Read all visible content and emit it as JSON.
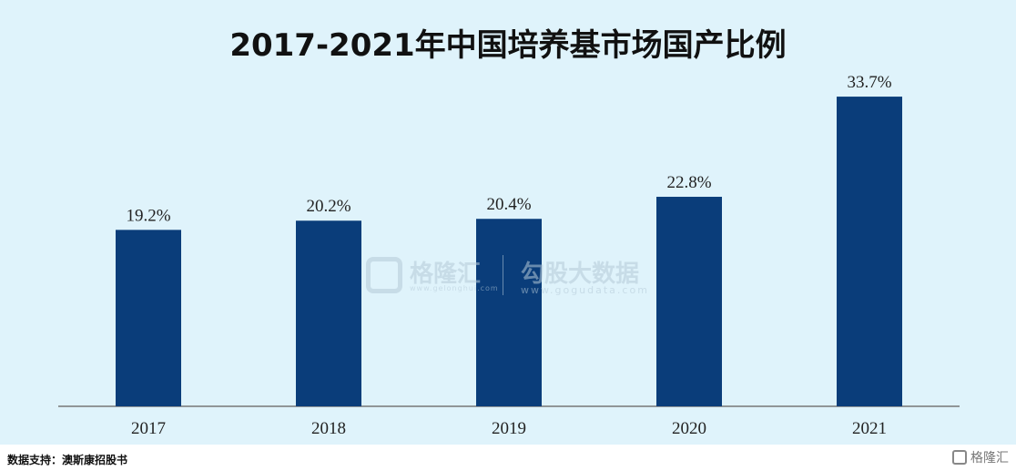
{
  "title": "2017-2021年中国培养基市场国产比例",
  "chart_data": {
    "type": "bar",
    "categories": [
      "2017",
      "2018",
      "2019",
      "2020",
      "2021"
    ],
    "values": [
      19.2,
      20.2,
      20.4,
      22.8,
      33.7
    ],
    "value_labels": [
      "19.2%",
      "20.2%",
      "20.4%",
      "22.8%",
      "33.7%"
    ],
    "title": "2017-2021年中国培养基市场国产比例",
    "xlabel": "",
    "ylabel": "",
    "ylim": [
      0,
      34.5
    ],
    "bar_color": "#0a3d7a",
    "grid": false
  },
  "watermark": {
    "name": "格隆汇",
    "url1": "www.gelonghui.com",
    "brand": "勾股大数据",
    "url2": "www.gogudata.com"
  },
  "source": "数据支持：澳斯康招股书",
  "corner_logo": "格隆汇",
  "colors": {
    "background": "#dff3fb",
    "bar": "#0a3d7a",
    "axis": "#777777"
  }
}
